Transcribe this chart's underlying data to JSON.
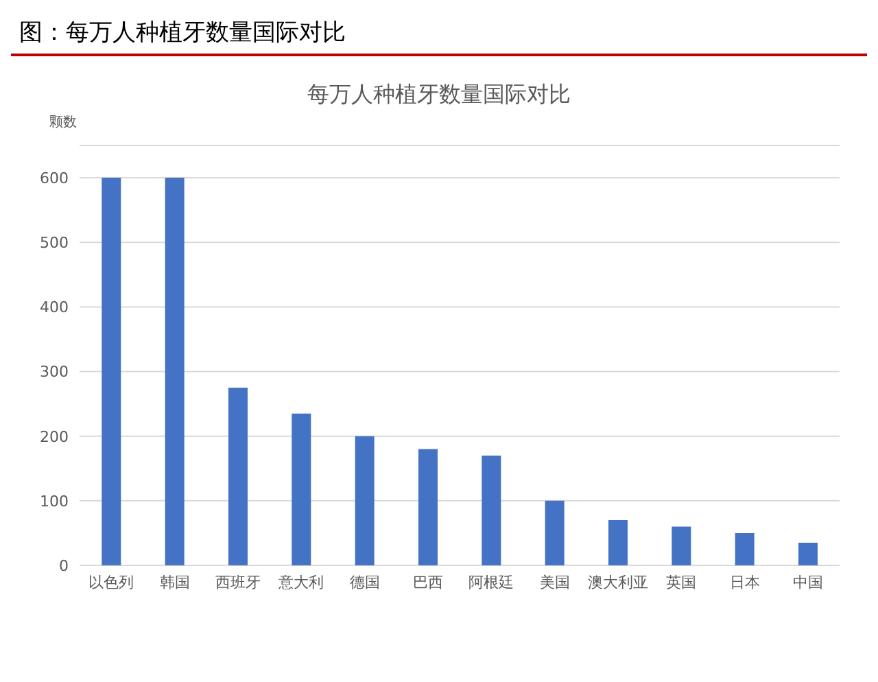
{
  "chart_data": {
    "type": "bar",
    "title": "图：每万人种植牙数量国际对比",
    "subtitle": "每万人种植牙数量国际对比",
    "ylabel": "颗数",
    "categories": [
      "以色列",
      "韩国",
      "西班牙",
      "意大利",
      "德国",
      "巴西",
      "阿根廷",
      "美国",
      "澳大利亚",
      "英国",
      "日本",
      "中国"
    ],
    "values": [
      600,
      600,
      275,
      235,
      200,
      180,
      170,
      100,
      70,
      60,
      50,
      35
    ],
    "color": "#4472c4",
    "ylim": [
      0,
      650
    ],
    "yticks": [
      0,
      100,
      200,
      300,
      400,
      500,
      600
    ],
    "grid": "y"
  }
}
